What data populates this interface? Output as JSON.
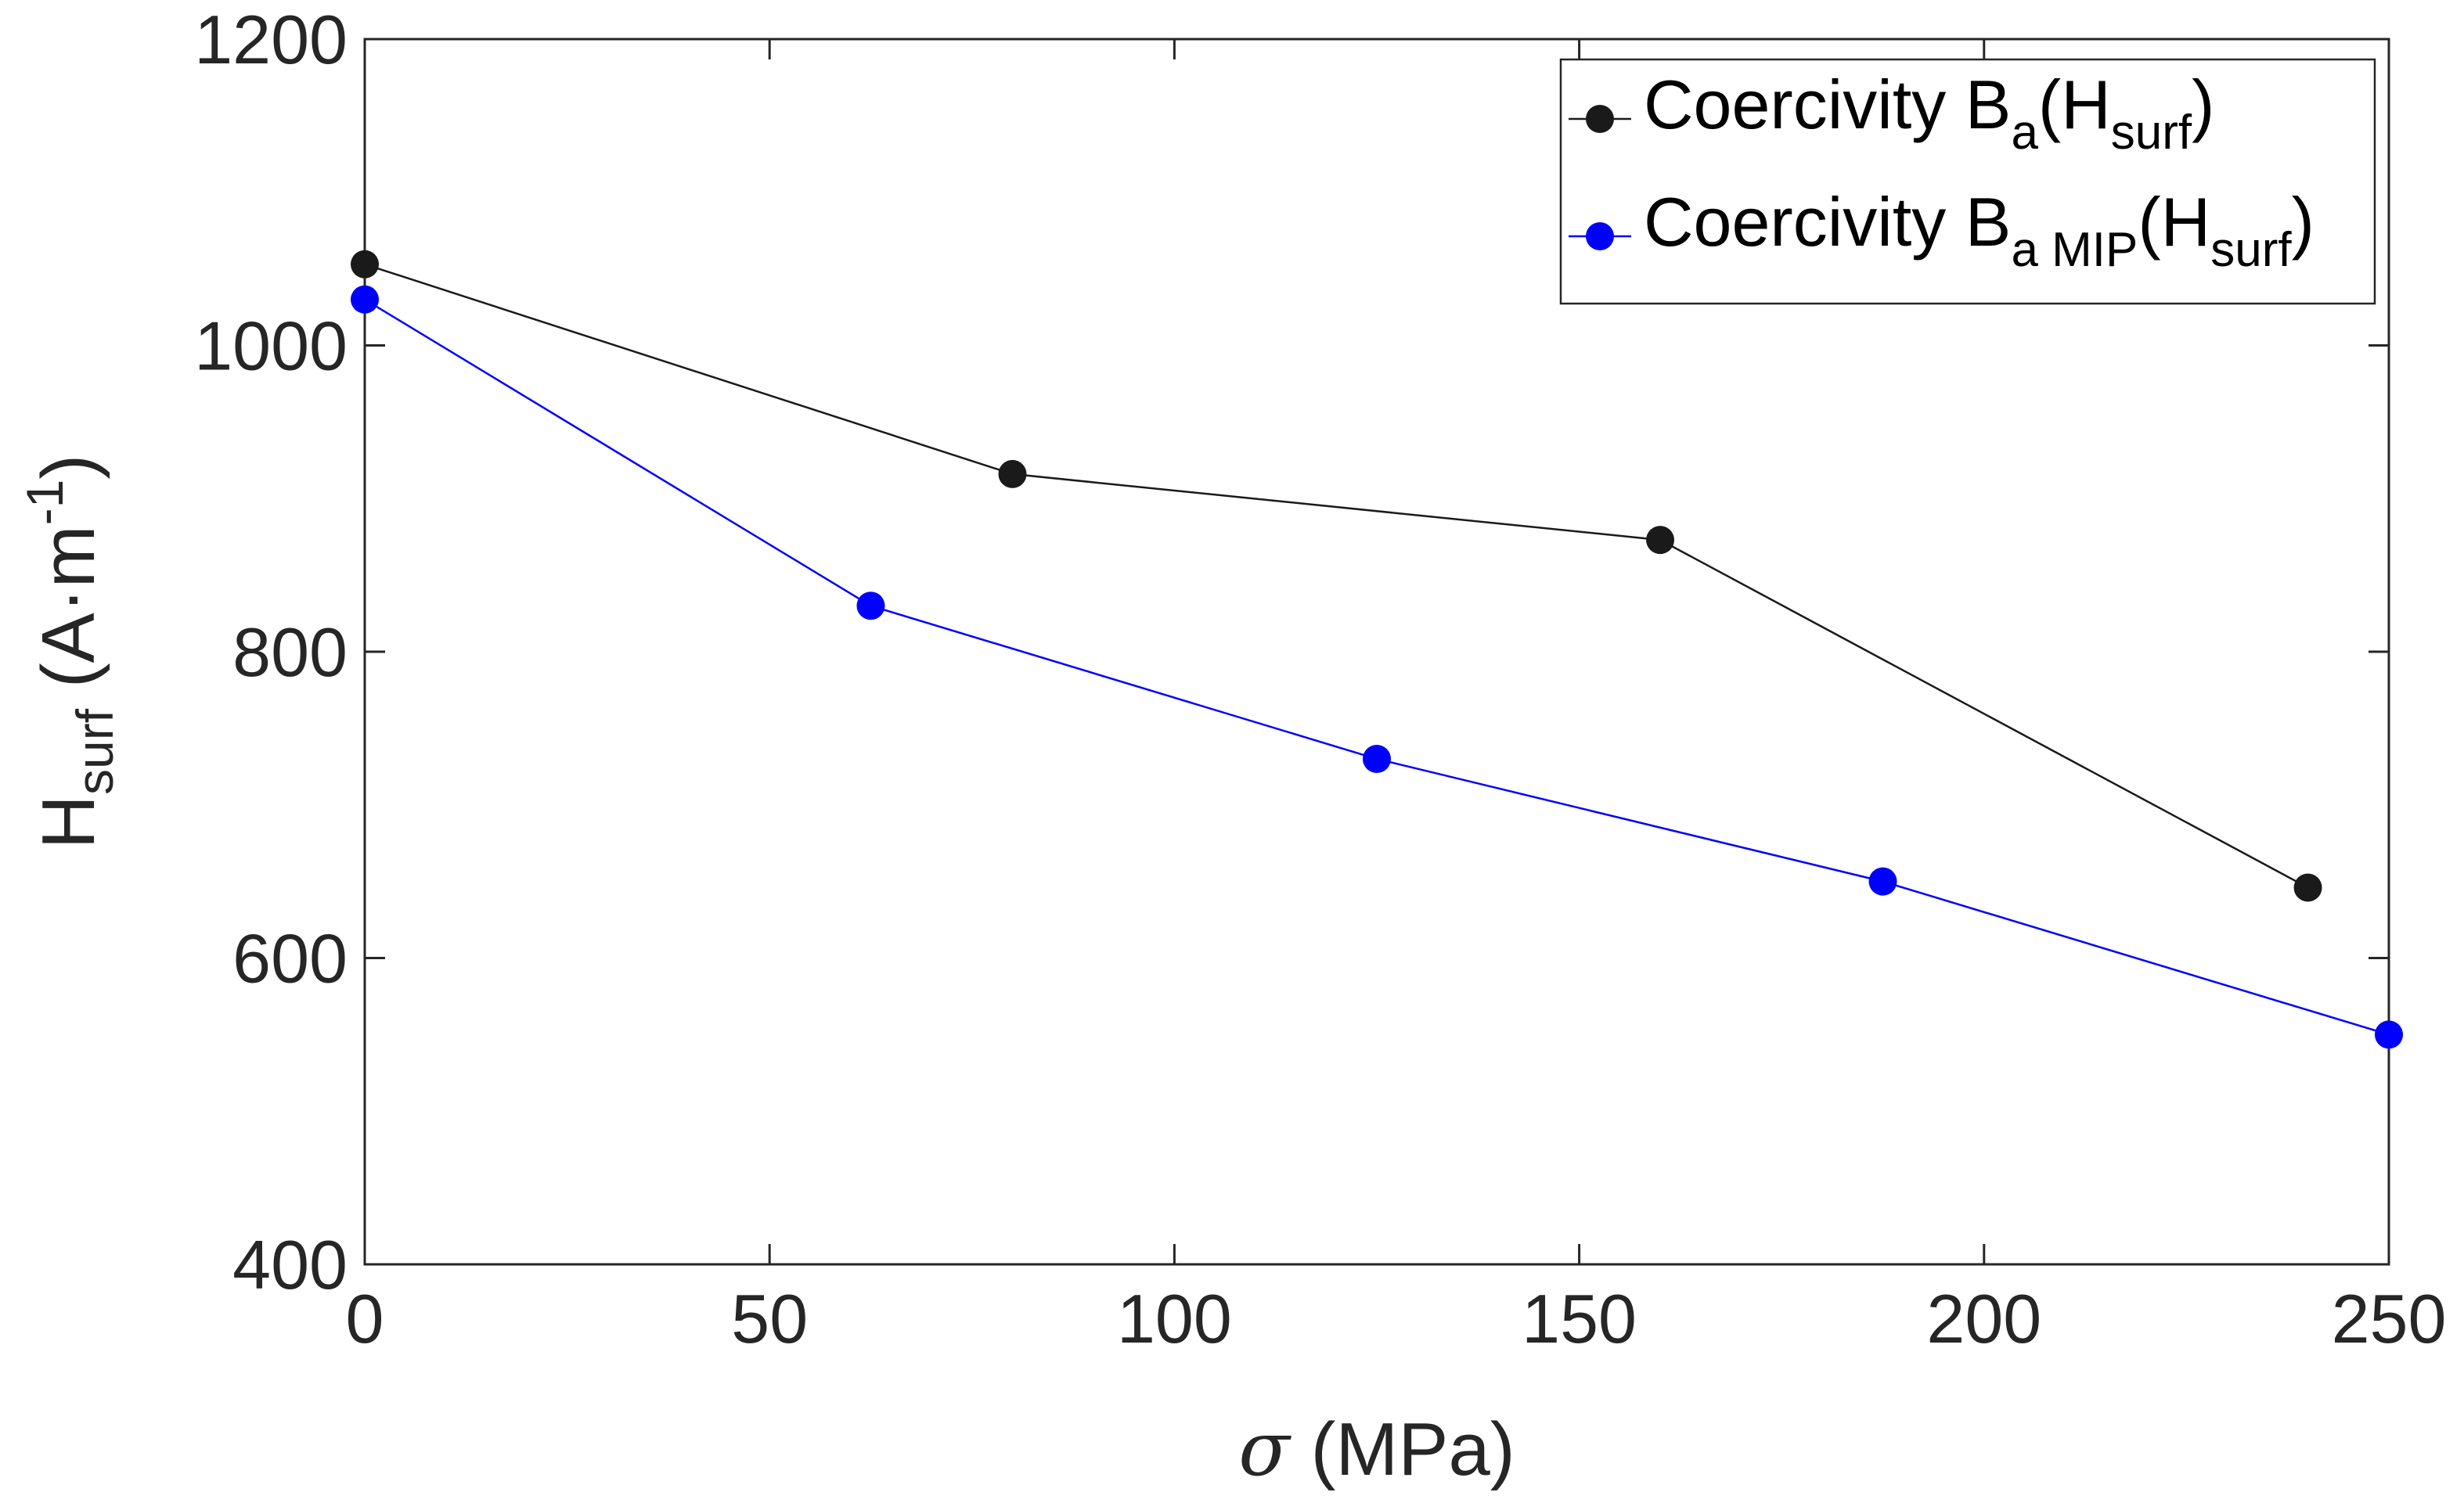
{
  "chart_data": {
    "type": "line",
    "title": "",
    "xlabel_symbol": "σ",
    "xlabel_unit": "(MPa)",
    "ylabel": {
      "main": "H",
      "sub": "surf",
      "unit_open": "(A·m",
      "unit_sup": "-1",
      "unit_close": ")"
    },
    "xlim": [
      0,
      250
    ],
    "ylim": [
      400,
      1200
    ],
    "xticks": [
      0,
      50,
      100,
      150,
      200,
      250
    ],
    "yticks": [
      400,
      600,
      800,
      1000,
      1200
    ],
    "grid": false,
    "legend_position": "top-right",
    "series": [
      {
        "name": "Coercivity B_a(H_surf)",
        "legend": {
          "prefix": "Coercivity B",
          "sub": "a",
          "mid": "(H",
          "sub2": "surf",
          "suffix": ")"
        },
        "color": "#1a1a1a",
        "x": [
          0,
          80,
          160,
          240
        ],
        "y": [
          1053,
          916,
          873,
          646
        ]
      },
      {
        "name": "Coercivity B_a MIP(H_surf)",
        "legend": {
          "prefix": "Coercivity B",
          "sub": "a MIP",
          "mid": "(H",
          "sub2": "surf",
          "suffix": ")"
        },
        "color": "#0000ff",
        "x": [
          0,
          62.5,
          125,
          187.5,
          250
        ],
        "y": [
          1030,
          830,
          730,
          650,
          550
        ]
      }
    ]
  }
}
